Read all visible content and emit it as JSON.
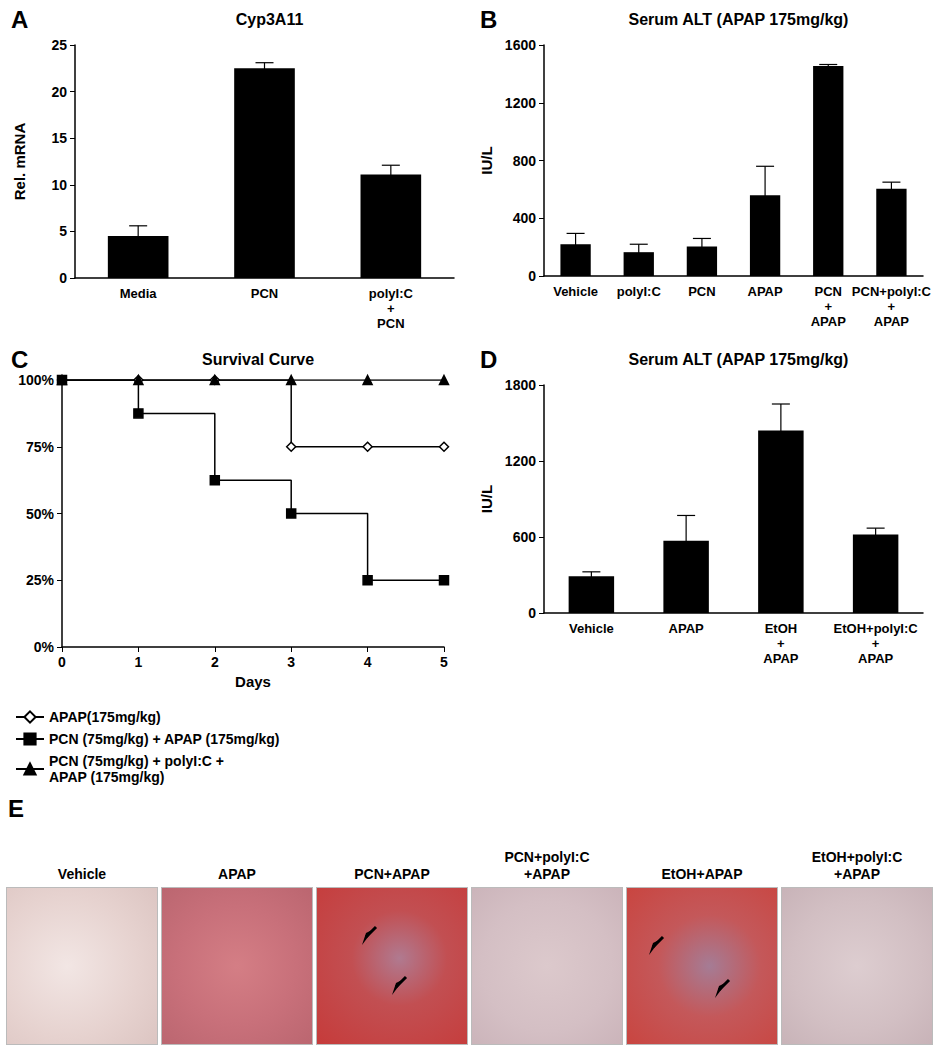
{
  "chart_data": [
    {
      "type": "bar",
      "panel": "A",
      "title": "Cyp3A11",
      "y_label": "Rel. mRNA",
      "categories": [
        "Media",
        "PCN",
        "polyI:C\n+\nPCN"
      ],
      "values": [
        4.5,
        22.5,
        11.1
      ],
      "errors": [
        1.1,
        0.6,
        1.0
      ],
      "color": "#000000",
      "ylim": [
        0,
        25
      ],
      "yticks": [
        0,
        5,
        10,
        15,
        20,
        25
      ],
      "grid": false
    },
    {
      "type": "bar",
      "panel": "B",
      "title": "Serum ALT (APAP 175mg/kg)",
      "y_label": "IU/L",
      "categories": [
        "Vehicle",
        "polyI:C",
        "PCN",
        "APAP",
        "PCN\n+\nAPAP",
        "PCN+polyI:C\n+\nAPAP"
      ],
      "values": [
        220,
        165,
        205,
        560,
        1455,
        605
      ],
      "errors": [
        75,
        55,
        55,
        200,
        10,
        45
      ],
      "color": "#000000",
      "ylim": [
        0,
        1600
      ],
      "yticks": [
        0,
        400,
        800,
        1200,
        1600
      ],
      "grid": false
    },
    {
      "type": "line",
      "panel": "C",
      "title": "Survival Curve",
      "x_label": "Days",
      "x": [
        0,
        1,
        2,
        3,
        4,
        5
      ],
      "series": [
        {
          "name": "APAP(175mg/kg)",
          "color": "#000000",
          "marker": "open-diamond",
          "values": [
            100,
            100,
            100,
            75,
            75,
            75
          ]
        },
        {
          "name": "PCN (75mg/kg) + APAP (175mg/kg)",
          "color": "#000000",
          "marker": "square",
          "values": [
            100,
            87.5,
            62.5,
            50,
            25,
            25
          ]
        },
        {
          "name": "PCN (75mg/kg) + polyI:C +\nAPAP (175mg/kg)",
          "color": "#000000",
          "marker": "triangle",
          "values": [
            100,
            100,
            100,
            100,
            100,
            100
          ]
        }
      ],
      "line_style": "step",
      "xlim": [
        0,
        5
      ],
      "xticks": [
        0,
        1,
        2,
        3,
        4,
        5
      ],
      "ylim": [
        0,
        100
      ],
      "yticks": [
        {
          "value": 0,
          "label": "0%"
        },
        {
          "value": 25,
          "label": "25%"
        },
        {
          "value": 50,
          "label": "50%"
        },
        {
          "value": 75,
          "label": "75%"
        },
        {
          "value": 100,
          "label": "100%"
        }
      ],
      "grid": false,
      "legend": "bottom"
    },
    {
      "type": "bar",
      "panel": "D",
      "title": "Serum ALT (APAP 175mg/kg)",
      "y_label": "IU/L",
      "categories": [
        "Vehicle",
        "APAP",
        "EtOH\n+\nAPAP",
        "EtOH+polyI:C\n+\nAPAP"
      ],
      "values": [
        290,
        570,
        1440,
        620
      ],
      "errors": [
        35,
        200,
        210,
        50
      ],
      "color": "#000000",
      "ylim": [
        0,
        1800
      ],
      "yticks": [
        0,
        600,
        1200,
        1800
      ],
      "grid": false
    }
  ],
  "panel_e": {
    "panel": "E",
    "images": [
      {
        "label": "Vehicle"
      },
      {
        "label": "APAP"
      },
      {
        "label": "PCN+APAP"
      },
      {
        "label": "PCN+polyI:C\n+APAP"
      },
      {
        "label": "EtOH+APAP"
      },
      {
        "label": "EtOH+polyI:C\n+APAP"
      }
    ]
  }
}
